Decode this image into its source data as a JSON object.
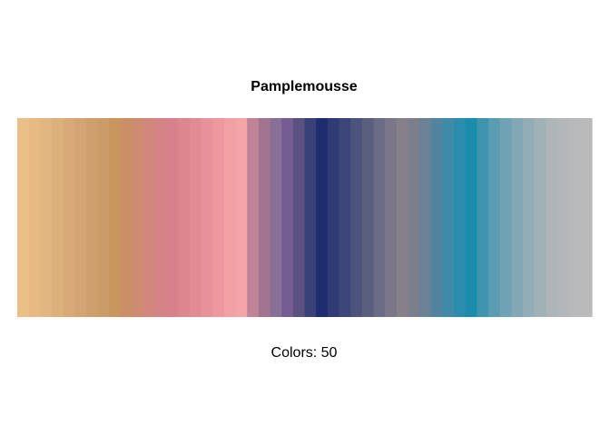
{
  "chart_data": {
    "type": "heatmap",
    "title": "Pamplemousse",
    "caption": "Colors: 50",
    "count": 50,
    "anchors": [
      "#EBBF88",
      "#C9965E",
      "#D8818C",
      "#F5A5A6",
      "#745D92",
      "#1F2C6E",
      "#858089",
      "#1A8DAD",
      "#BABABA"
    ],
    "colors": [
      "#EBBF88",
      "#E7BA84",
      "#E2B680",
      "#DDB17C",
      "#D8AA77",
      "#D4A573",
      "#CFA06D",
      "#CB9B68",
      "#C9965E",
      "#CB8F68",
      "#CF8B72",
      "#D3877C",
      "#D68386",
      "#D8818C",
      "#DC8690",
      "#E18B95",
      "#E8919A",
      "#ED979E",
      "#F2A0A3",
      "#F5A5A6",
      "#BF8497",
      "#A3748F",
      "#877093",
      "#745D92",
      "#5C5080",
      "#384279",
      "#1F2C6E",
      "#303A74",
      "#3C467A",
      "#4C537C",
      "#5A5F7E",
      "#6A6B85",
      "#7B7688",
      "#858089",
      "#7B7F8C",
      "#6A8196",
      "#53849F",
      "#3F8AA7",
      "#2A8DAB",
      "#1A8DAD",
      "#3F94AD",
      "#5A9CB1",
      "#6FA2B3",
      "#82A8B5",
      "#93ADB6",
      "#A1B2B7",
      "#ADB5B8",
      "#B4B7B9",
      "#B8B9BA",
      "#BABABA"
    ]
  }
}
